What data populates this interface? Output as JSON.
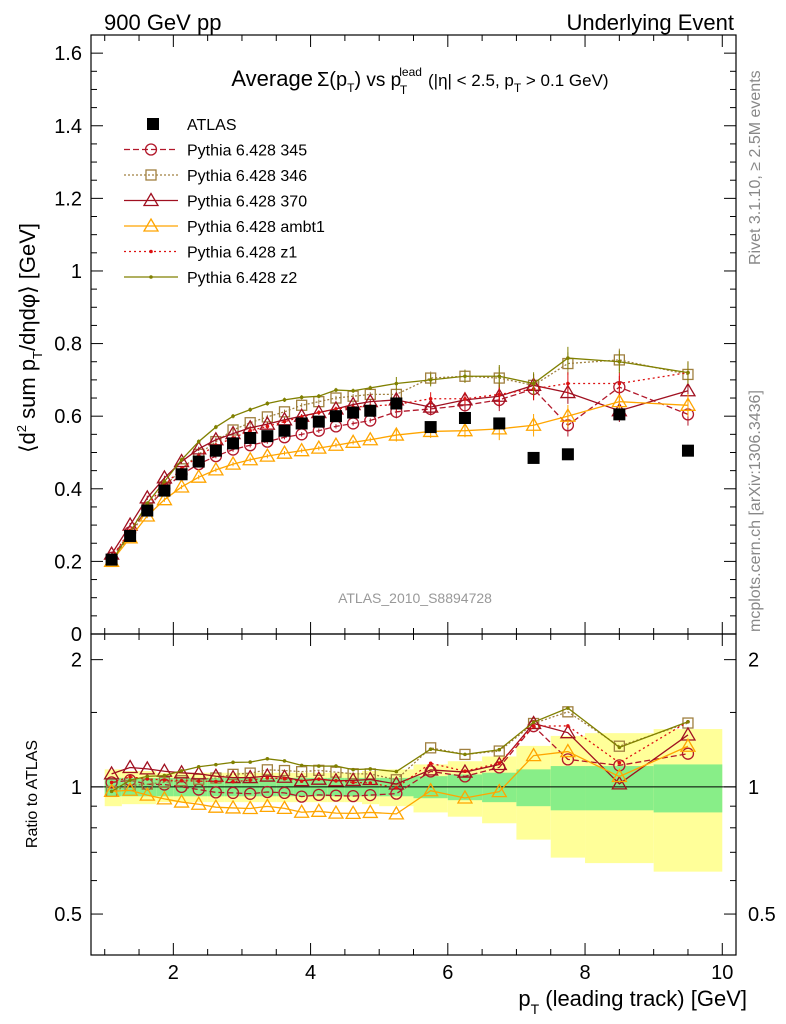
{
  "header": {
    "left": "900 GeV pp",
    "right": "Underlying Event"
  },
  "side_labels": {
    "rivet": "Rivet 3.1.10, ≥ 2.5M events",
    "mcplots": "mcplots.cern.ch [arXiv:1306.3436]"
  },
  "watermark": "ATLAS_2010_S8894728",
  "chart_data": [
    {
      "type": "line",
      "title": "Average Σ(p_T) vs p_T^lead (|η| < 2.5, p_T > 0.1 GeV)",
      "title_parts": {
        "average": "Average",
        "sigma": "Σ(p",
        "sigma_sub": "T",
        "sigma_close": ")",
        "vs": " vs p",
        "vs_sup": "lead",
        "vs_sub": "T",
        "rest1": " (|η| < 2.5, p",
        "rest_sub": "T",
        "rest2": " > 0.1 GeV)"
      },
      "ylabel": "⟨d² sum p_T/dηdφ⟩ [GeV]",
      "ylabel_parts": {
        "a": "⟨d",
        "sup": "2",
        "b": " sum p",
        "sub": "T",
        "c": "/dηdφ⟩ [GeV]"
      },
      "xlim": [
        0.8,
        10.2
      ],
      "ylim": [
        0,
        1.65
      ],
      "yticks": [
        0,
        0.2,
        0.4,
        0.6,
        0.8,
        1,
        1.2,
        1.4,
        1.6
      ],
      "ytick_labels": [
        "0",
        "0.2",
        "0.4",
        "0.6",
        "0.8",
        "1",
        "1.2",
        "1.4",
        "1.6"
      ],
      "x": [
        1.1,
        1.37,
        1.62,
        1.87,
        2.12,
        2.37,
        2.62,
        2.87,
        3.12,
        3.37,
        3.62,
        3.87,
        4.12,
        4.37,
        4.62,
        4.87,
        5.25,
        5.75,
        6.25,
        6.75,
        7.25,
        7.75,
        8.5,
        9.5
      ],
      "legend_position": "top-left",
      "series": [
        {
          "name": "ATLAS",
          "color": "#000000",
          "style": "data",
          "marker": "square-filled",
          "values": [
            0.205,
            0.27,
            0.34,
            0.395,
            0.44,
            0.475,
            0.505,
            0.525,
            0.54,
            0.545,
            0.56,
            0.58,
            0.585,
            0.6,
            0.61,
            0.615,
            0.635,
            0.57,
            0.595,
            0.58,
            0.485,
            0.495,
            0.605,
            0.505
          ]
        },
        {
          "name": "Pythia 6.428 345",
          "color": "#b2182b",
          "dash": "6,3",
          "marker": "circle-open",
          "values": [
            0.21,
            0.28,
            0.345,
            0.4,
            0.44,
            0.468,
            0.49,
            0.508,
            0.52,
            0.53,
            0.542,
            0.55,
            0.56,
            0.572,
            0.58,
            0.588,
            0.612,
            0.62,
            0.63,
            0.645,
            0.675,
            0.575,
            0.68,
            0.605
          ]
        },
        {
          "name": "Pythia 6.428 346",
          "color": "#a08040",
          "dash": "2,2",
          "marker": "square-open",
          "values": [
            0.2,
            0.272,
            0.345,
            0.405,
            0.455,
            0.495,
            0.53,
            0.562,
            0.582,
            0.598,
            0.612,
            0.63,
            0.64,
            0.65,
            0.655,
            0.66,
            0.66,
            0.705,
            0.71,
            0.705,
            0.685,
            0.745,
            0.755,
            0.715
          ]
        },
        {
          "name": "Pythia 6.428 370",
          "color": "#a01020",
          "dash": "",
          "marker": "triangle-open",
          "values": [
            0.22,
            0.3,
            0.375,
            0.43,
            0.475,
            0.51,
            0.535,
            0.552,
            0.568,
            0.578,
            0.59,
            0.6,
            0.61,
            0.62,
            0.632,
            0.64,
            0.645,
            0.625,
            0.645,
            0.655,
            0.685,
            0.665,
            0.615,
            0.67
          ]
        },
        {
          "name": "Pythia 6.428 ambt1",
          "color": "#ffa500",
          "dash": "",
          "marker": "triangle-open",
          "values": [
            0.2,
            0.265,
            0.325,
            0.37,
            0.405,
            0.432,
            0.452,
            0.468,
            0.48,
            0.49,
            0.498,
            0.505,
            0.512,
            0.52,
            0.528,
            0.535,
            0.548,
            0.558,
            0.56,
            0.565,
            0.575,
            0.6,
            0.64,
            0.63
          ]
        },
        {
          "name": "Pythia 6.428 z1",
          "color": "#dd1111",
          "dash": "2,3",
          "marker": "dot",
          "values": [
            0.21,
            0.285,
            0.355,
            0.41,
            0.455,
            0.49,
            0.52,
            0.54,
            0.56,
            0.572,
            0.585,
            0.598,
            0.61,
            0.62,
            0.625,
            0.628,
            0.632,
            0.648,
            0.648,
            0.66,
            0.675,
            0.69,
            0.69,
            0.72
          ]
        },
        {
          "name": "Pythia 6.428 z2",
          "color": "#808000",
          "dash": "",
          "marker": "dot",
          "values": [
            0.2,
            0.28,
            0.36,
            0.42,
            0.48,
            0.53,
            0.57,
            0.6,
            0.618,
            0.635,
            0.645,
            0.652,
            0.655,
            0.672,
            0.67,
            0.678,
            0.69,
            0.7,
            0.71,
            0.71,
            0.69,
            0.76,
            0.75,
            0.72
          ]
        }
      ]
    },
    {
      "type": "line",
      "ylabel": "Ratio to ATLAS",
      "xlabel": "p_T (leading track) [GeV]",
      "xlabel_parts": {
        "a": "p",
        "sub": "T",
        "b": " (leading track) [GeV]"
      },
      "xlim": [
        0.8,
        10.2
      ],
      "ylim": [
        0.4,
        2.3
      ],
      "log_y": true,
      "xticks": [
        2,
        4,
        6,
        8,
        10
      ],
      "xtick_labels": [
        "2",
        "4",
        "6",
        "8",
        "10"
      ],
      "yticks": [
        0.5,
        1,
        2
      ],
      "ytick_labels": [
        "0.5",
        "1",
        "2"
      ],
      "bands": {
        "bin_edges": [
          1.0,
          1.25,
          1.5,
          1.75,
          2.0,
          2.25,
          2.5,
          2.75,
          3.0,
          3.25,
          3.5,
          3.75,
          4.0,
          4.25,
          4.5,
          4.75,
          5.0,
          5.5,
          6.0,
          6.5,
          7.0,
          7.5,
          8.0,
          9.0,
          10.0
        ],
        "inner_halfwidth": [
          0.05,
          0.05,
          0.05,
          0.05,
          0.05,
          0.05,
          0.05,
          0.05,
          0.05,
          0.05,
          0.05,
          0.05,
          0.05,
          0.05,
          0.05,
          0.05,
          0.05,
          0.06,
          0.07,
          0.08,
          0.1,
          0.12,
          0.12,
          0.13
        ],
        "outer_halfwidth": [
          0.1,
          0.09,
          0.09,
          0.08,
          0.08,
          0.08,
          0.08,
          0.08,
          0.08,
          0.08,
          0.08,
          0.08,
          0.08,
          0.08,
          0.08,
          0.09,
          0.1,
          0.13,
          0.15,
          0.18,
          0.25,
          0.32,
          0.34,
          0.37
        ],
        "inner_color": "#88ee88",
        "outer_color": "#ffff99"
      },
      "reference_line": 1
    }
  ]
}
